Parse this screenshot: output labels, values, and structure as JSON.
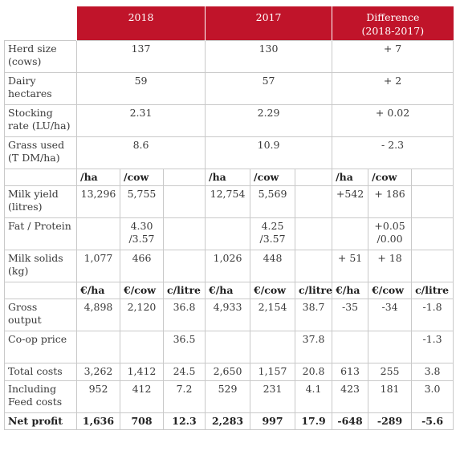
{
  "years": {
    "y2018": "2018",
    "y2017": "2017",
    "diff_line1": "Difference",
    "diff_line2": "(2018-2017)"
  },
  "summary_rows": [
    {
      "label": "Herd size (cows)",
      "v2018": "137",
      "v2017": "130",
      "diff": "+ 7"
    },
    {
      "label": "Dairy hectares",
      "v2018": "59",
      "v2017": "57",
      "diff": "+ 2"
    },
    {
      "label": "Stocking rate (LU/ha)",
      "v2018": "2.31",
      "v2017": "2.29",
      "diff": "+ 0.02"
    },
    {
      "label": "Grass used (T DM/ha)",
      "v2018": "8.6",
      "v2017": "10.9",
      "diff": "- 2.3"
    }
  ],
  "milk_header": {
    "ha": "/ha",
    "cow": "/cow"
  },
  "milk_rows": [
    {
      "label": "Milk yield (litres)",
      "a": "13,296",
      "b": "5,755",
      "d": "12,754",
      "e": "5,569",
      "g": "+542",
      "h": "+ 186"
    },
    {
      "label": "Fat / Protein",
      "a": "",
      "b": "4.30 /3.57",
      "d": "",
      "e": "4.25 /3.57",
      "g": "",
      "h": "+0.05 /0.00"
    },
    {
      "label": "Milk solids (kg)",
      "a": "1,077",
      "b": "466",
      "d": "1,026",
      "e": "448",
      "g": "+ 51",
      "h": "+ 18"
    }
  ],
  "money_header": {
    "ha": "€/ha",
    "cow": "€/cow",
    "litre": "c/litre"
  },
  "money_rows": [
    {
      "label": "Gross output",
      "v": [
        "4,898",
        "2,120",
        "36.8",
        "4,933",
        "2,154",
        "38.7",
        "-35",
        "-34",
        "-1.8"
      ]
    },
    {
      "label": "Co-op price",
      "v": [
        "",
        "",
        "36.5",
        "",
        "",
        "37.8",
        "",
        "",
        "-1.3"
      ]
    },
    {
      "label": "Total costs",
      "v": [
        "3,262",
        "1,412",
        "24.5",
        "2,650",
        "1,157",
        "20.8",
        "613",
        "255",
        "3.8"
      ]
    },
    {
      "label": "Including Feed costs",
      "v": [
        "952",
        "412",
        "7.2",
        "529",
        "231",
        "4.1",
        "423",
        "181",
        "3.0"
      ]
    }
  ],
  "net_profit": {
    "label": "Net profit",
    "v": [
      "1,636",
      "708",
      "12.3",
      "2,283",
      "997",
      "17.9",
      "-648",
      "-289",
      "-5.6"
    ]
  },
  "colors": {
    "header_red": "#c0142a",
    "border": "#c9c9c9"
  }
}
